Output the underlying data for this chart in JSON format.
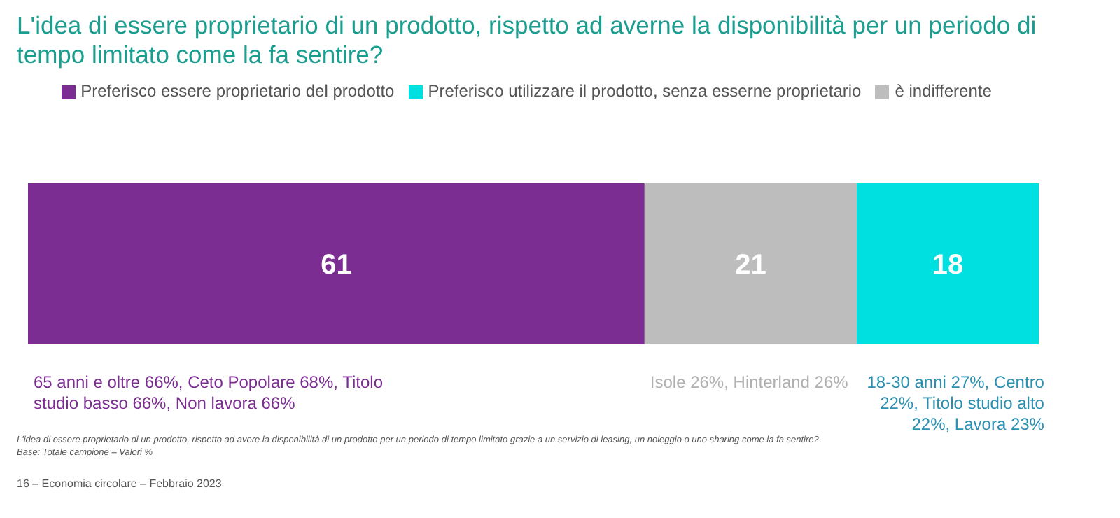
{
  "chart_data": {
    "type": "bar",
    "orientation": "horizontal",
    "stacked": true,
    "title": "L'idea di essere proprietario di un prodotto, rispetto ad averne la disponibilità per un periodo di tempo limitato come la fa sentire?",
    "categories": [
      null
    ],
    "series": [
      {
        "name": "Preferisco essere proprietario del prodotto",
        "color": "#7b2d91",
        "values": [
          61
        ]
      },
      {
        "name": "è indifferente",
        "color": "#bdbdbd",
        "values": [
          21
        ]
      },
      {
        "name": "Preferisco utilizzare il prodotto, senza esserne proprietario",
        "color": "#00e0e0",
        "values": [
          18
        ]
      }
    ],
    "data_labels": true,
    "legend": "top",
    "tick_labels": false,
    "annotations": [
      "65 anni e oltre 66%, Ceto Popolare 68%, Titolo studio basso 66%, Non lavora 66%",
      "Isole 26%, Hinterland 26%",
      "18-30 anni 27%, Centro 22%, Titolo studio alto 22%, Lavora 23%",
      "L'idea di essere proprietario di un prodotto, rispetto ad avere la disponibilità di un prodotto per un periodo di tempo limitato grazie a un servizio di leasing, un noleggio o uno sharing come la fa sentire?",
      "Base: Totale campione – Valori %",
      "16 – Economia circolare – Febbraio 2023"
    ]
  }
}
